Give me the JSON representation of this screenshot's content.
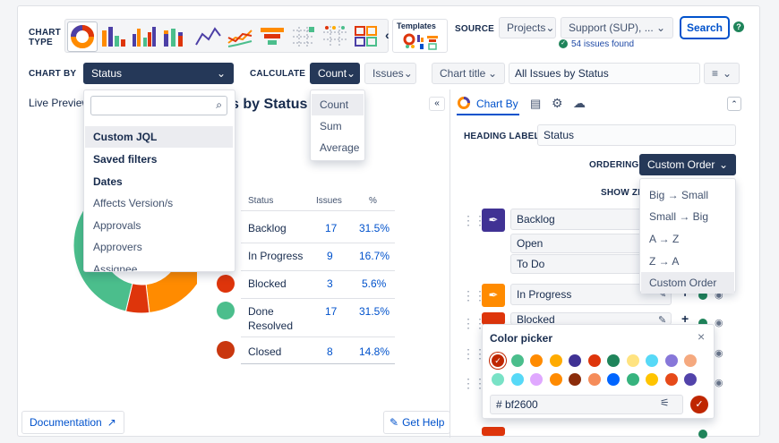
{
  "toolbar": {
    "chart_type_label": "CHART TYPE",
    "templates_label": "Templates",
    "source_label": "SOURCE",
    "source_value": "Projects",
    "project_value": "Support (SUP), ...",
    "search_label": "Search",
    "issues_found": "54 issues found"
  },
  "controls": {
    "chart_by_label": "CHART BY",
    "chart_by_value": "Status",
    "calculate_label": "CALCULATE",
    "calculate_value": "Count",
    "issues_value": "Issues",
    "chart_title_label": "Chart title",
    "chart_title_value": "All Issues by Status"
  },
  "chart_by_menu": {
    "search_placeholder": "",
    "items": [
      "Custom JQL",
      "Saved filters",
      "Dates",
      "Affects Version/s",
      "Approvals",
      "Approvers",
      "Assignee"
    ]
  },
  "calculate_menu": {
    "items": [
      "Count",
      "Sum",
      "Average"
    ]
  },
  "preview": {
    "tab_label": "Live Preview",
    "title_fragment": "s by Status",
    "doc_link": "Documentation",
    "help_link": "Get Help"
  },
  "chart_data": {
    "type": "table",
    "headers": [
      "Status",
      "Issues",
      "%"
    ],
    "rows": [
      {
        "status": "Backlog",
        "issues": "17",
        "pct": "31.5%",
        "color": null
      },
      {
        "status": "In Progress",
        "issues": "9",
        "pct": "16.7%",
        "color": null
      },
      {
        "status": "Blocked",
        "issues": "3",
        "pct": "5.6%",
        "color": "#de350b"
      },
      {
        "status": "Done",
        "status2": "Resolved",
        "issues": "17",
        "pct": "31.5%",
        "color": "#4bbe8c"
      },
      {
        "status": "Closed",
        "issues": "8",
        "pct": "14.8%",
        "color": "#c9370f"
      }
    ],
    "donut": [
      {
        "label": "Backlog",
        "value": 17,
        "color": "#4c3fa6"
      },
      {
        "label": "In Progress",
        "value": 9,
        "color": "#ff8b00"
      },
      {
        "label": "Blocked",
        "value": 3,
        "color": "#de350b"
      },
      {
        "label": "Done Resolved",
        "value": 17,
        "color": "#4bbe8c"
      },
      {
        "label": "Closed",
        "value": 8,
        "color": "#e45c3a"
      }
    ]
  },
  "settings": {
    "tab_chart_by": "Chart By",
    "heading_label": "HEADING LABEL",
    "heading_value": "Status",
    "ordering_label": "ORDERING",
    "ordering_value": "Custom Order",
    "show_zero_label": "SHOW ZE",
    "ordering_options": [
      "Big → Small",
      "Small → Big",
      "A → Z",
      "Z → A",
      "Custom Order"
    ],
    "groups": [
      {
        "label": "Backlog",
        "color": "#403294",
        "subs": [
          "Open",
          "To Do"
        ]
      },
      {
        "label": "In Progress",
        "color": "#ff8b00"
      },
      {
        "label": "Blocked",
        "color": "#de350b"
      }
    ]
  },
  "color_picker": {
    "title": "Color picker",
    "hex_value": "# bf2600",
    "colors_row1": [
      "#bf2600",
      "#4bbe8c",
      "#ff8b00",
      "#ffab00",
      "#403294",
      "#de350b",
      "#1f845a",
      "#ffe380",
      "#57d9f7",
      "#8777d9",
      "#f5a97f"
    ],
    "colors_row2": [
      "#79e2c6",
      "#57d9f7",
      "#e0a8ff",
      "#ff8b00",
      "#8b2c0a",
      "#f58c5a",
      "#0065ff",
      "#36b37e",
      "#ffc400",
      "#e64a19",
      "#5243aa"
    ]
  }
}
